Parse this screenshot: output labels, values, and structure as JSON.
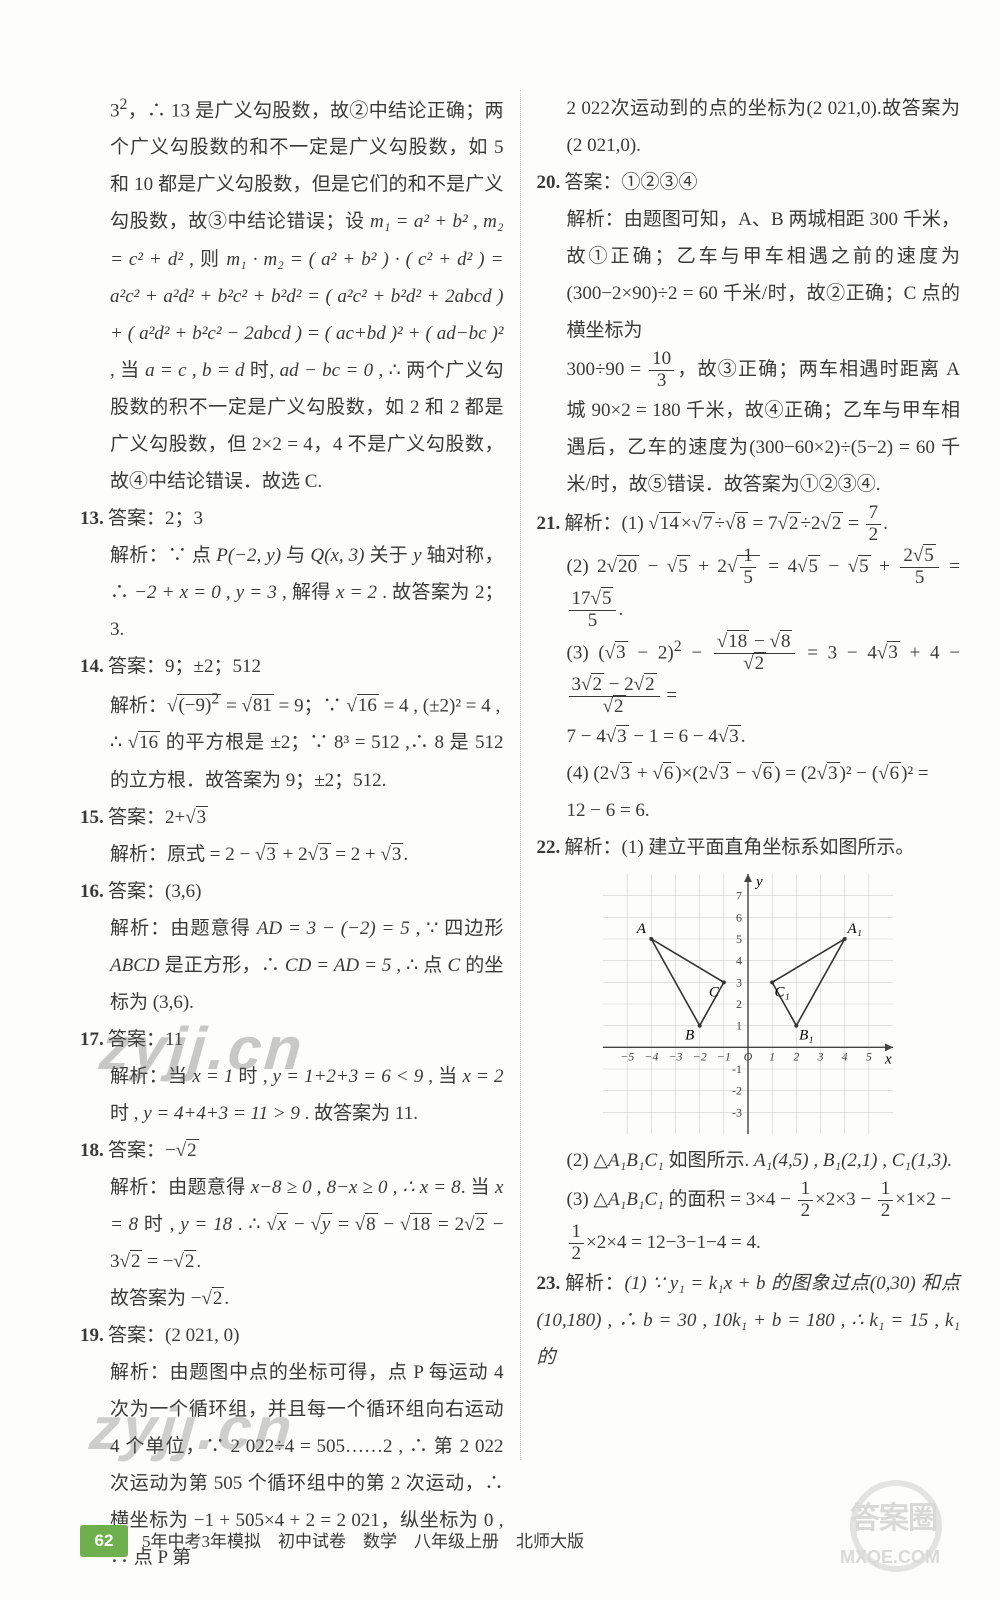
{
  "footer": {
    "page": "62",
    "text": "5年中考3年模拟　初中试卷　数学　八年级上册　北师大版"
  },
  "watermarks": {
    "w1": "zyjj.cn",
    "w2": "zyjj.cn",
    "logo_top": "答案圈",
    "logo_url": "MXQE.COM"
  },
  "left": {
    "p12": {
      "pre_a": "3",
      "pre_sup": "2",
      "pre_rest": "，∴ 13 是广义勾股数，故②中结论正确；两个广义勾股数的和不一定是广义勾股数，如 5 和 10 都是广义勾股数，但是它们的和不是广义勾股数，故③中结论错误；设 ",
      "m_set": "m₁ = a² + b² , m₂ = c² + d²",
      "then": " , 则 ",
      "m_expr": "m₁ · m₂ = ( a² + b² ) · ( c² + d² ) = a²c² + a²d² + b²c² + b²d² = ( a²c² + b²d² + 2abcd ) + ( a²d² + b²c² − 2abcd ) = ( ac+bd )² + ( ad−bc )²",
      "when": " , 当 ",
      "cond": "a = c , b = d",
      "wtime": " 时,",
      "zero": "ad − bc = 0",
      "tail": " , ∴ 两个广义勾股数的积不一定是广义勾股数，如 2 和 2 都是广义勾股数，但 2×2 = 4，4 不是广义勾股数，故④中结论错误．故选 C."
    },
    "p13": {
      "num": "13.",
      "ans_label": "答案：",
      "ans": "2；3",
      "jx_label": "解析：",
      "jx_a": "∵ 点 ",
      "pt": "P(−2, y)",
      "jx_b": " 与 ",
      "qt": "Q(x, 3)",
      "jx_c": " 关于 ",
      "yax": "y",
      "jx_d": " 轴对称，∴ ",
      "eq": "−2 + x = 0 , y = 3",
      "jx_e": " , 解得 ",
      "soln": "x = 2",
      "jx_f": " . 故答案为 2；3."
    },
    "p14": {
      "num": "14.",
      "ans_label": "答案：",
      "ans": "9；±2；512",
      "jx_label": "解析：",
      "formula1_pre": "√",
      "formula1_inner_a": "(−9)",
      "formula1_sup": "2",
      "formula1_eq": " = ",
      "formula1_r81": "√",
      "formula1_81": "81",
      "formula1_eq9": " = 9；∵ ",
      "sqrt16": "√",
      "n16": "16",
      "eq4": " = 4 , (±2)² = 4 ,",
      "line2_a": "∴ ",
      "line2_b": "√",
      "line2_c": "16",
      "line2_d": " 的平方根是 ±2；∵ 8³ = 512 ,∴ 8 是 512 的立方根．故答案为 9；±2；512."
    },
    "p15": {
      "num": "15.",
      "ans_label": "答案：",
      "ans_pre": "2+",
      "ans_rad": "√",
      "ans_3": "3",
      "jx_label": "解析：",
      "jx_a": "原式 = 2 − ",
      "r1": "√",
      "v3a": "3",
      "plus": " + 2",
      "r2": "√",
      "v3b": "3",
      "eq": " = 2 + ",
      "r3": "√",
      "v3c": "3",
      "dot": "."
    },
    "p16": {
      "num": "16.",
      "ans_label": "答案：",
      "ans": "(3,6)",
      "jx_label": "解析：",
      "jx_a": "由题意得 ",
      "ad": "AD = 3 − (−2) = 5",
      "jx_b": " , ∵ 四边形 ",
      "abcd": "ABCD",
      "jx_c": " 是正方形，∴ ",
      "cd": "CD = AD = 5",
      "jx_d": " , ∴ 点 ",
      "cpt": "C",
      "jx_e": " 的坐标为 (3,6)."
    },
    "p17": {
      "num": "17.",
      "ans_label": "答案：",
      "ans": "11",
      "jx_label": "解析：",
      "jx_a": "当 ",
      "x1": "x = 1",
      "jx_b": " 时 , ",
      "y1": "y = 1+2+3 = 6 < 9",
      "jx_c": " , 当 ",
      "x2": "x = 2",
      "jx_d": " 时 , ",
      "y2": "y = 4+4+3 = 11 > 9",
      "jx_e": " . 故答案为 11."
    },
    "p18": {
      "num": "18.",
      "ans_label": "答案：",
      "ans_pre": "−",
      "ans_rad": "√",
      "ans_2": "2",
      "jx_label": "解析：",
      "jx_a": "由题意得 ",
      "cond": "x−8 ≥ 0 , 8−x ≥ 0 , ∴ x = 8",
      "jx_b": ". 当 ",
      "x8": "x = 8",
      "jx_c": " 时 , ",
      "y18": "y = 18",
      "jx_d": " . ∴ ",
      "rx": "√",
      "vx": "x",
      "minus": " − ",
      "ry": "√",
      "vy": "y",
      "eq": " = ",
      "r8": "√",
      "v8": "8",
      "m2": " − ",
      "r18": "√",
      "v18": "18",
      "eq2": " = 2",
      "r2a": "√",
      "v2a": "2",
      "m3": " − 3",
      "r2b": "√",
      "v2b": "2",
      "eq3": " = −",
      "r2c": "√",
      "v2c": "2",
      "dot": ".",
      "final_a": "故答案为 −",
      "final_r": "√",
      "final_2": "2",
      "final_dot": "."
    },
    "p19": {
      "num": "19.",
      "ans_label": "答案：",
      "ans": "(2 021, 0)",
      "jx_label": "解析：",
      "jx": "由题图中点的坐标可得，点 P 每运动 4 次为一个循环组，并且每一个循环组向右运动 4 个单位，∵ 2 022÷4 = 505……2 , ∴ 第 2 022 次运动为第 505 个循环组中的第 2 次运动，∴ 横坐标为 −1 + 505×4 + 2 = 2 021，纵坐标为 0 , ∴ 点 P 第"
    }
  },
  "right": {
    "p19_cont": "2 022次运动到的点的坐标为(2 021,0).故答案为(2 021,0).",
    "p20": {
      "num": "20.",
      "ans_label": "答案：",
      "ans": "①②③④",
      "jx_label": "解析：",
      "jx_a": "由题图可知，A、B 两城相距 300 千米，故①正确；乙车与甲车相遇之前的速度为(300−2×90)÷2 = 60 千米/时，故②正确；C 点的横坐标为",
      "frac_expr_pre": "300÷90 = ",
      "frac_num": "10",
      "frac_den": "3",
      "jx_b": "，故③正确；两车相遇时距离 A 城 90×2 = 180 千米，故④正确；乙车与甲车相遇后，乙车的速度为(300−60×2)÷(5−2) = 60 千米/时，故⑤错误．故答案为①②③④."
    },
    "p21": {
      "num": "21.",
      "jx_label": "解析：",
      "e1": {
        "lead": "(1)",
        "r14": "√",
        "v14": "14",
        "x": "×",
        "r7": "√",
        "v7": "7",
        "d": "÷",
        "r8": "√",
        "v8": "8",
        "eq": " = 7",
        "r2": "√",
        "v2": "2",
        "d2": "÷2",
        "r2b": "√",
        "v2b": "2",
        "eq2": " = ",
        "fn": "7",
        "fd": "2",
        "dot": "."
      },
      "e2": {
        "lead": "(2)",
        "t2": "2",
        "r20": "√",
        "v20": "20",
        "m": " − ",
        "r5": "√",
        "v5": "5",
        "p": " + 2",
        "frad": "√",
        "fn": "1",
        "fd": "5",
        "eq": " = 4",
        "r5b": "√",
        "v5b": "5",
        "m2": " − ",
        "r5c": "√",
        "v5c": "5",
        "p2": " + ",
        "f2n_a": "2",
        "f2n_r": "√",
        "f2n_v": "5",
        "f2d": "5",
        "eqf": " = ",
        "f3n_a": "17",
        "f3n_r": "√",
        "f3n_v": "5",
        "f3d": "5",
        "dot": "."
      },
      "e3": {
        "lead": "(3)",
        "lpar": "(",
        "r3": "√",
        "v3": "3",
        "m2": " − 2)",
        "sup": "2",
        "m": " − ",
        "fnum_r18": "√",
        "fnum_18": "18",
        "fnum_m": " − ",
        "fnum_r8": "√",
        "fnum_8": "8",
        "fden_r": "√",
        "fden_2": "2",
        "eq": " = 3 − 4",
        "r3b": "√",
        "v3b": "3",
        "p4": " + 4 − ",
        "f2num_a": "3",
        "f2num_r1": "√",
        "f2num_v1": "2",
        "f2num_m": " − 2",
        "f2num_r2": "√",
        "f2num_v2": "2",
        "f2den_r": "√",
        "f2den_2": "2",
        "eq2": " =",
        "line2": "7 − 4",
        "l2r": "√",
        "l2v": "3",
        "l2m": " − 1 = 6 − 4",
        "l2r2": "√",
        "l2v2": "3",
        "l2dot": "."
      },
      "e4": {
        "lead": "(4)",
        "a": "(2",
        "ra": "√",
        "va": "3",
        "p": " + ",
        "rb": "√",
        "vb": "6",
        "rp": ")×(2",
        "rc": "√",
        "vc": "3",
        "m": " − ",
        "rd": "√",
        "vd": "6",
        "rp2": ") = (2",
        "re": "√",
        "ve": "3",
        "rp3": ")² − (",
        "rf": "√",
        "vf": "6",
        "rp4": ")² =",
        "res": "12 − 6 = 6."
      }
    },
    "p22": {
      "num": "22.",
      "jx_label": "解析：",
      "part1": "(1) 建立平面直角坐标系如图所示。",
      "part2_a": "(2) △",
      "part2_tri": "A₁B₁C₁",
      "part2_b": " 如图所示. ",
      "pts": "A₁(4,5) , B₁(2,1) , C₁(1,3).",
      "part3_a": "(3) △",
      "part3_tri": "A₁B₁C₁",
      "part3_b": " 的面积 = 3×4 − ",
      "f1n": "1",
      "f1d": "2",
      "f1t": "×2×3 − ",
      "f2n": "1",
      "f2d": "2",
      "f2t": "×1×2 −",
      "line2_fn": "1",
      "line2_fd": "2",
      "line2_rest": "×2×4 = 12−3−1−4 = 4."
    },
    "p22_graph": {
      "plot_bg": "#ffffff",
      "axis_color": "#444",
      "grid_color": "#d0d0d0",
      "tick_fontsize": 12,
      "label_fontsize": 15,
      "line_width": 1.6,
      "xlim": [
        -6,
        6
      ],
      "ylim": [
        -4,
        8
      ],
      "xtick_step": 1,
      "ytick_step": 1,
      "x_ticks": [
        "−5",
        "−4",
        "−3",
        "−2",
        "−1",
        "O",
        "1",
        "2",
        "3",
        "4",
        "5"
      ],
      "y_ticks_pos": [
        -3,
        -2,
        -1,
        1,
        2,
        3,
        4,
        5,
        6,
        7
      ],
      "axis_labels": {
        "x": "x",
        "y": "y"
      },
      "triangles": [
        {
          "pts": [
            [
              -4,
              5
            ],
            [
              -2,
              1
            ],
            [
              -1,
              3
            ]
          ],
          "labels": [
            "A",
            "B",
            "C"
          ],
          "color": "#333"
        },
        {
          "pts": [
            [
              4,
              5
            ],
            [
              2,
              1
            ],
            [
              1,
              3
            ]
          ],
          "labels": [
            "A₁",
            "B₁",
            "C₁"
          ],
          "color": "#333"
        }
      ]
    },
    "p23": {
      "num": "23.",
      "jx_label": "解析：",
      "txt": "(1) ∵ y₁ = k₁x + b 的图象过点(0,30) 和点 (10,180) , ∴ b = 30 , 10k₁ + b = 180 , ∴ k₁ = 15 , k₁ 的"
    }
  }
}
